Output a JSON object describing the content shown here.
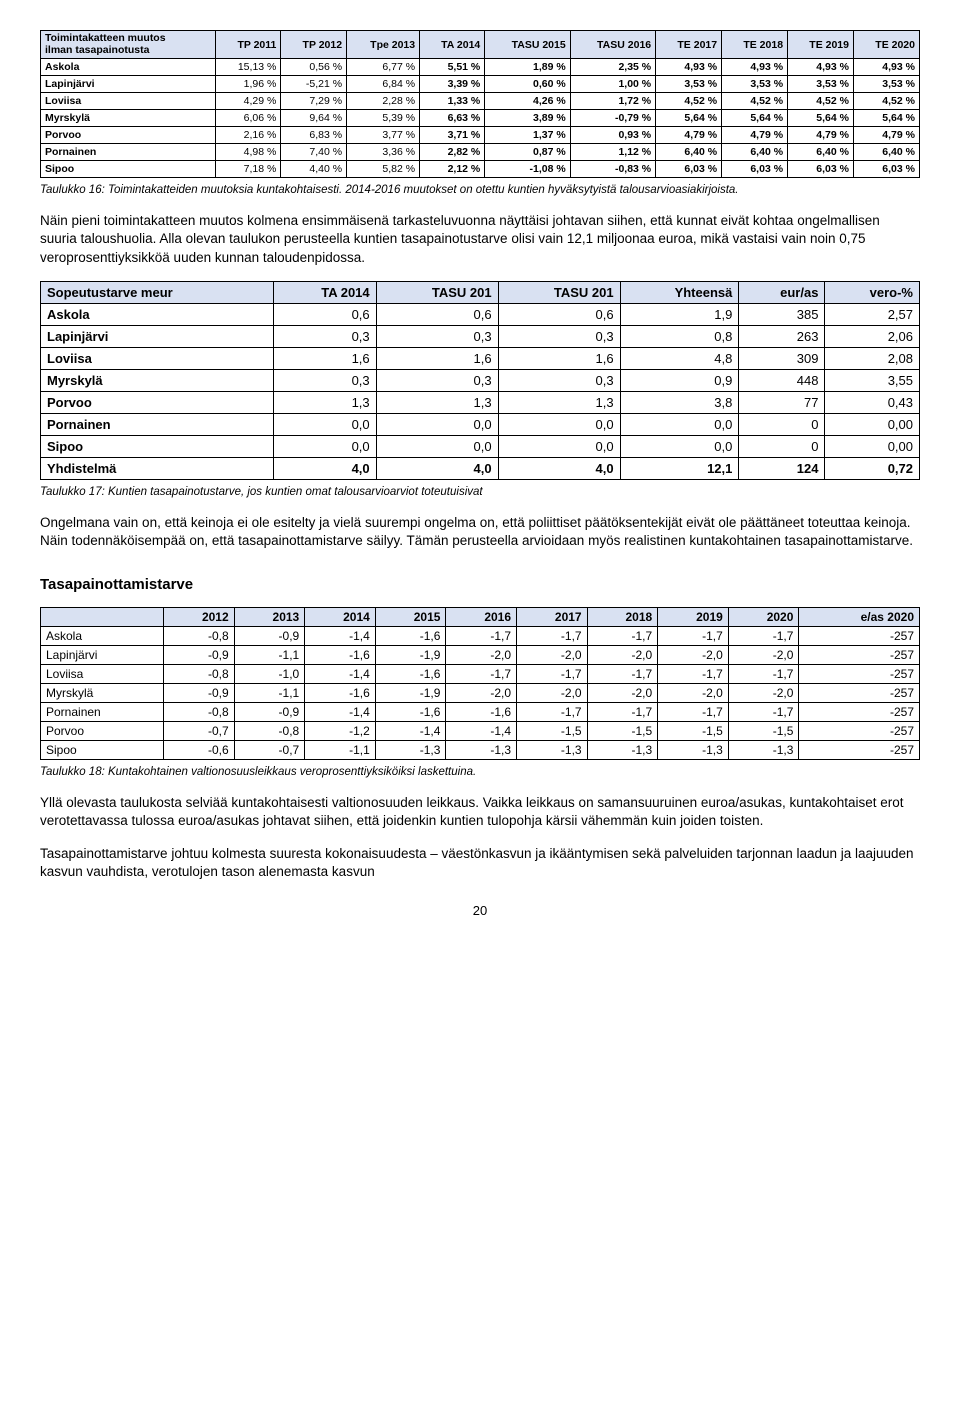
{
  "table1": {
    "header_line1": "Toimintakatteen muutos",
    "header_line2": "ilman tasapainotusta",
    "cols": [
      "TP 2011",
      "TP 2012",
      "Tpe 2013",
      "TA 2014",
      "TASU 2015",
      "TASU 2016",
      "TE 2017",
      "TE 2018",
      "TE 2019",
      "TE 2020"
    ],
    "rows": [
      {
        "label": "Askola",
        "v": [
          "15,13 %",
          "0,56 %",
          "6,77 %",
          "5,51 %",
          "1,89 %",
          "2,35 %",
          "4,93 %",
          "4,93 %",
          "4,93 %",
          "4,93 %"
        ]
      },
      {
        "label": "Lapinjärvi",
        "v": [
          "1,96 %",
          "-5,21 %",
          "6,84 %",
          "3,39 %",
          "0,60 %",
          "1,00 %",
          "3,53 %",
          "3,53 %",
          "3,53 %",
          "3,53 %"
        ]
      },
      {
        "label": "Loviisa",
        "v": [
          "4,29 %",
          "7,29 %",
          "2,28 %",
          "1,33 %",
          "4,26 %",
          "1,72 %",
          "4,52 %",
          "4,52 %",
          "4,52 %",
          "4,52 %"
        ]
      },
      {
        "label": "Myrskylä",
        "v": [
          "6,06 %",
          "9,64 %",
          "5,39 %",
          "6,63 %",
          "3,89 %",
          "-0,79 %",
          "5,64 %",
          "5,64 %",
          "5,64 %",
          "5,64 %"
        ]
      },
      {
        "label": "Porvoo",
        "v": [
          "2,16 %",
          "6,83 %",
          "3,77 %",
          "3,71 %",
          "1,37 %",
          "0,93 %",
          "4,79 %",
          "4,79 %",
          "4,79 %",
          "4,79 %"
        ]
      },
      {
        "label": "Pornainen",
        "v": [
          "4,98 %",
          "7,40 %",
          "3,36 %",
          "2,82 %",
          "0,87 %",
          "1,12 %",
          "6,40 %",
          "6,40 %",
          "6,40 %",
          "6,40 %"
        ]
      },
      {
        "label": "Sipoo",
        "v": [
          "7,18 %",
          "4,40 %",
          "5,82 %",
          "2,12 %",
          "-1,08 %",
          "-0,83 %",
          "6,03 %",
          "6,03 %",
          "6,03 %",
          "6,03 %"
        ]
      }
    ],
    "bold_cols_from": 3
  },
  "caption1": "Taulukko 16: Toimintakatteiden muutoksia kuntakohtaisesti. 2014-2016 muutokset on otettu kuntien hyväksytyistä talousarvioasiakirjoista.",
  "para1": "Näin pieni toimintakatteen muutos kolmena ensimmäisenä tarkasteluvuonna näyttäisi johtavan siihen, että kunnat eivät kohtaa ongelmallisen suuria taloushuolia. Alla olevan taulukon perusteella kuntien tasapainotustarve olisi vain 12,1 miljoonaa euroa, mikä vastaisi vain noin 0,75 veroprosenttiyksikköä uuden kunnan taloudenpidossa.",
  "table2": {
    "headers": [
      "Sopeutustarve meur",
      "TA 2014",
      "TASU 201",
      "TASU 201",
      "Yhteensä",
      "eur/as",
      "vero-%"
    ],
    "rows": [
      {
        "label": "Askola",
        "v": [
          "0,6",
          "0,6",
          "0,6",
          "1,9",
          "385",
          "2,57"
        ]
      },
      {
        "label": "Lapinjärvi",
        "v": [
          "0,3",
          "0,3",
          "0,3",
          "0,8",
          "263",
          "2,06"
        ]
      },
      {
        "label": "Loviisa",
        "v": [
          "1,6",
          "1,6",
          "1,6",
          "4,8",
          "309",
          "2,08"
        ]
      },
      {
        "label": "Myrskylä",
        "v": [
          "0,3",
          "0,3",
          "0,3",
          "0,9",
          "448",
          "3,55"
        ]
      },
      {
        "label": "Porvoo",
        "v": [
          "1,3",
          "1,3",
          "1,3",
          "3,8",
          "77",
          "0,43"
        ]
      },
      {
        "label": "Pornainen",
        "v": [
          "0,0",
          "0,0",
          "0,0",
          "0,0",
          "0",
          "0,00"
        ]
      },
      {
        "label": "Sipoo",
        "v": [
          "0,0",
          "0,0",
          "0,0",
          "0,0",
          "0",
          "0,00"
        ]
      }
    ],
    "total": {
      "label": "Yhdistelmä",
      "v": [
        "4,0",
        "4,0",
        "4,0",
        "12,1",
        "124",
        "0,72"
      ]
    }
  },
  "caption2": "Taulukko 17: Kuntien tasapainotustarve, jos kuntien omat talousarvioarviot toteutuisivat",
  "para2": "Ongelmana vain on, että keinoja ei ole esitelty ja vielä suurempi ongelma on, että poliittiset päätöksentekijät eivät ole päättäneet toteuttaa keinoja. Näin todennäköisempää on, että tasapainottamistarve säilyy. Tämän perusteella arvioidaan myös realistinen kuntakohtainen tasapainottamistarve.",
  "section_heading": "Tasapainottamistarve",
  "table3": {
    "cols": [
      "2012",
      "2013",
      "2014",
      "2015",
      "2016",
      "2017",
      "2018",
      "2019",
      "2020",
      "e/as 2020"
    ],
    "rows": [
      {
        "label": "Askola",
        "v": [
          "-0,8",
          "-0,9",
          "-1,4",
          "-1,6",
          "-1,7",
          "-1,7",
          "-1,7",
          "-1,7",
          "-1,7",
          "-257"
        ]
      },
      {
        "label": "Lapinjärvi",
        "v": [
          "-0,9",
          "-1,1",
          "-1,6",
          "-1,9",
          "-2,0",
          "-2,0",
          "-2,0",
          "-2,0",
          "-2,0",
          "-257"
        ]
      },
      {
        "label": "Loviisa",
        "v": [
          "-0,8",
          "-1,0",
          "-1,4",
          "-1,6",
          "-1,7",
          "-1,7",
          "-1,7",
          "-1,7",
          "-1,7",
          "-257"
        ]
      },
      {
        "label": "Myrskylä",
        "v": [
          "-0,9",
          "-1,1",
          "-1,6",
          "-1,9",
          "-2,0",
          "-2,0",
          "-2,0",
          "-2,0",
          "-2,0",
          "-257"
        ]
      },
      {
        "label": "Pornainen",
        "v": [
          "-0,8",
          "-0,9",
          "-1,4",
          "-1,6",
          "-1,6",
          "-1,7",
          "-1,7",
          "-1,7",
          "-1,7",
          "-257"
        ]
      },
      {
        "label": "Porvoo",
        "v": [
          "-0,7",
          "-0,8",
          "-1,2",
          "-1,4",
          "-1,4",
          "-1,5",
          "-1,5",
          "-1,5",
          "-1,5",
          "-257"
        ]
      },
      {
        "label": "Sipoo",
        "v": [
          "-0,6",
          "-0,7",
          "-1,1",
          "-1,3",
          "-1,3",
          "-1,3",
          "-1,3",
          "-1,3",
          "-1,3",
          "-257"
        ]
      }
    ]
  },
  "caption3": "Taulukko 18: Kuntakohtainen valtionosuusleikkaus veroprosenttiyksiköiksi laskettuina.",
  "para3": "Yllä olevasta taulukosta selviää kuntakohtaisesti valtionosuuden leikkaus. Vaikka leikkaus on samansuuruinen euroa/asukas, kuntakohtaiset erot verotettavassa tulossa euroa/asukas johtavat siihen, että joidenkin kuntien tulopohja kärsii vähemmän kuin joiden toisten.",
  "para4": "Tasapainottamistarve johtuu kolmesta suuresta kokonaisuudesta – väestönkasvun ja ikääntymisen sekä palveluiden tarjonnan laadun ja laajuuden kasvun vauhdista, verotulojen tason alenemasta kasvun",
  "page_number": "20"
}
